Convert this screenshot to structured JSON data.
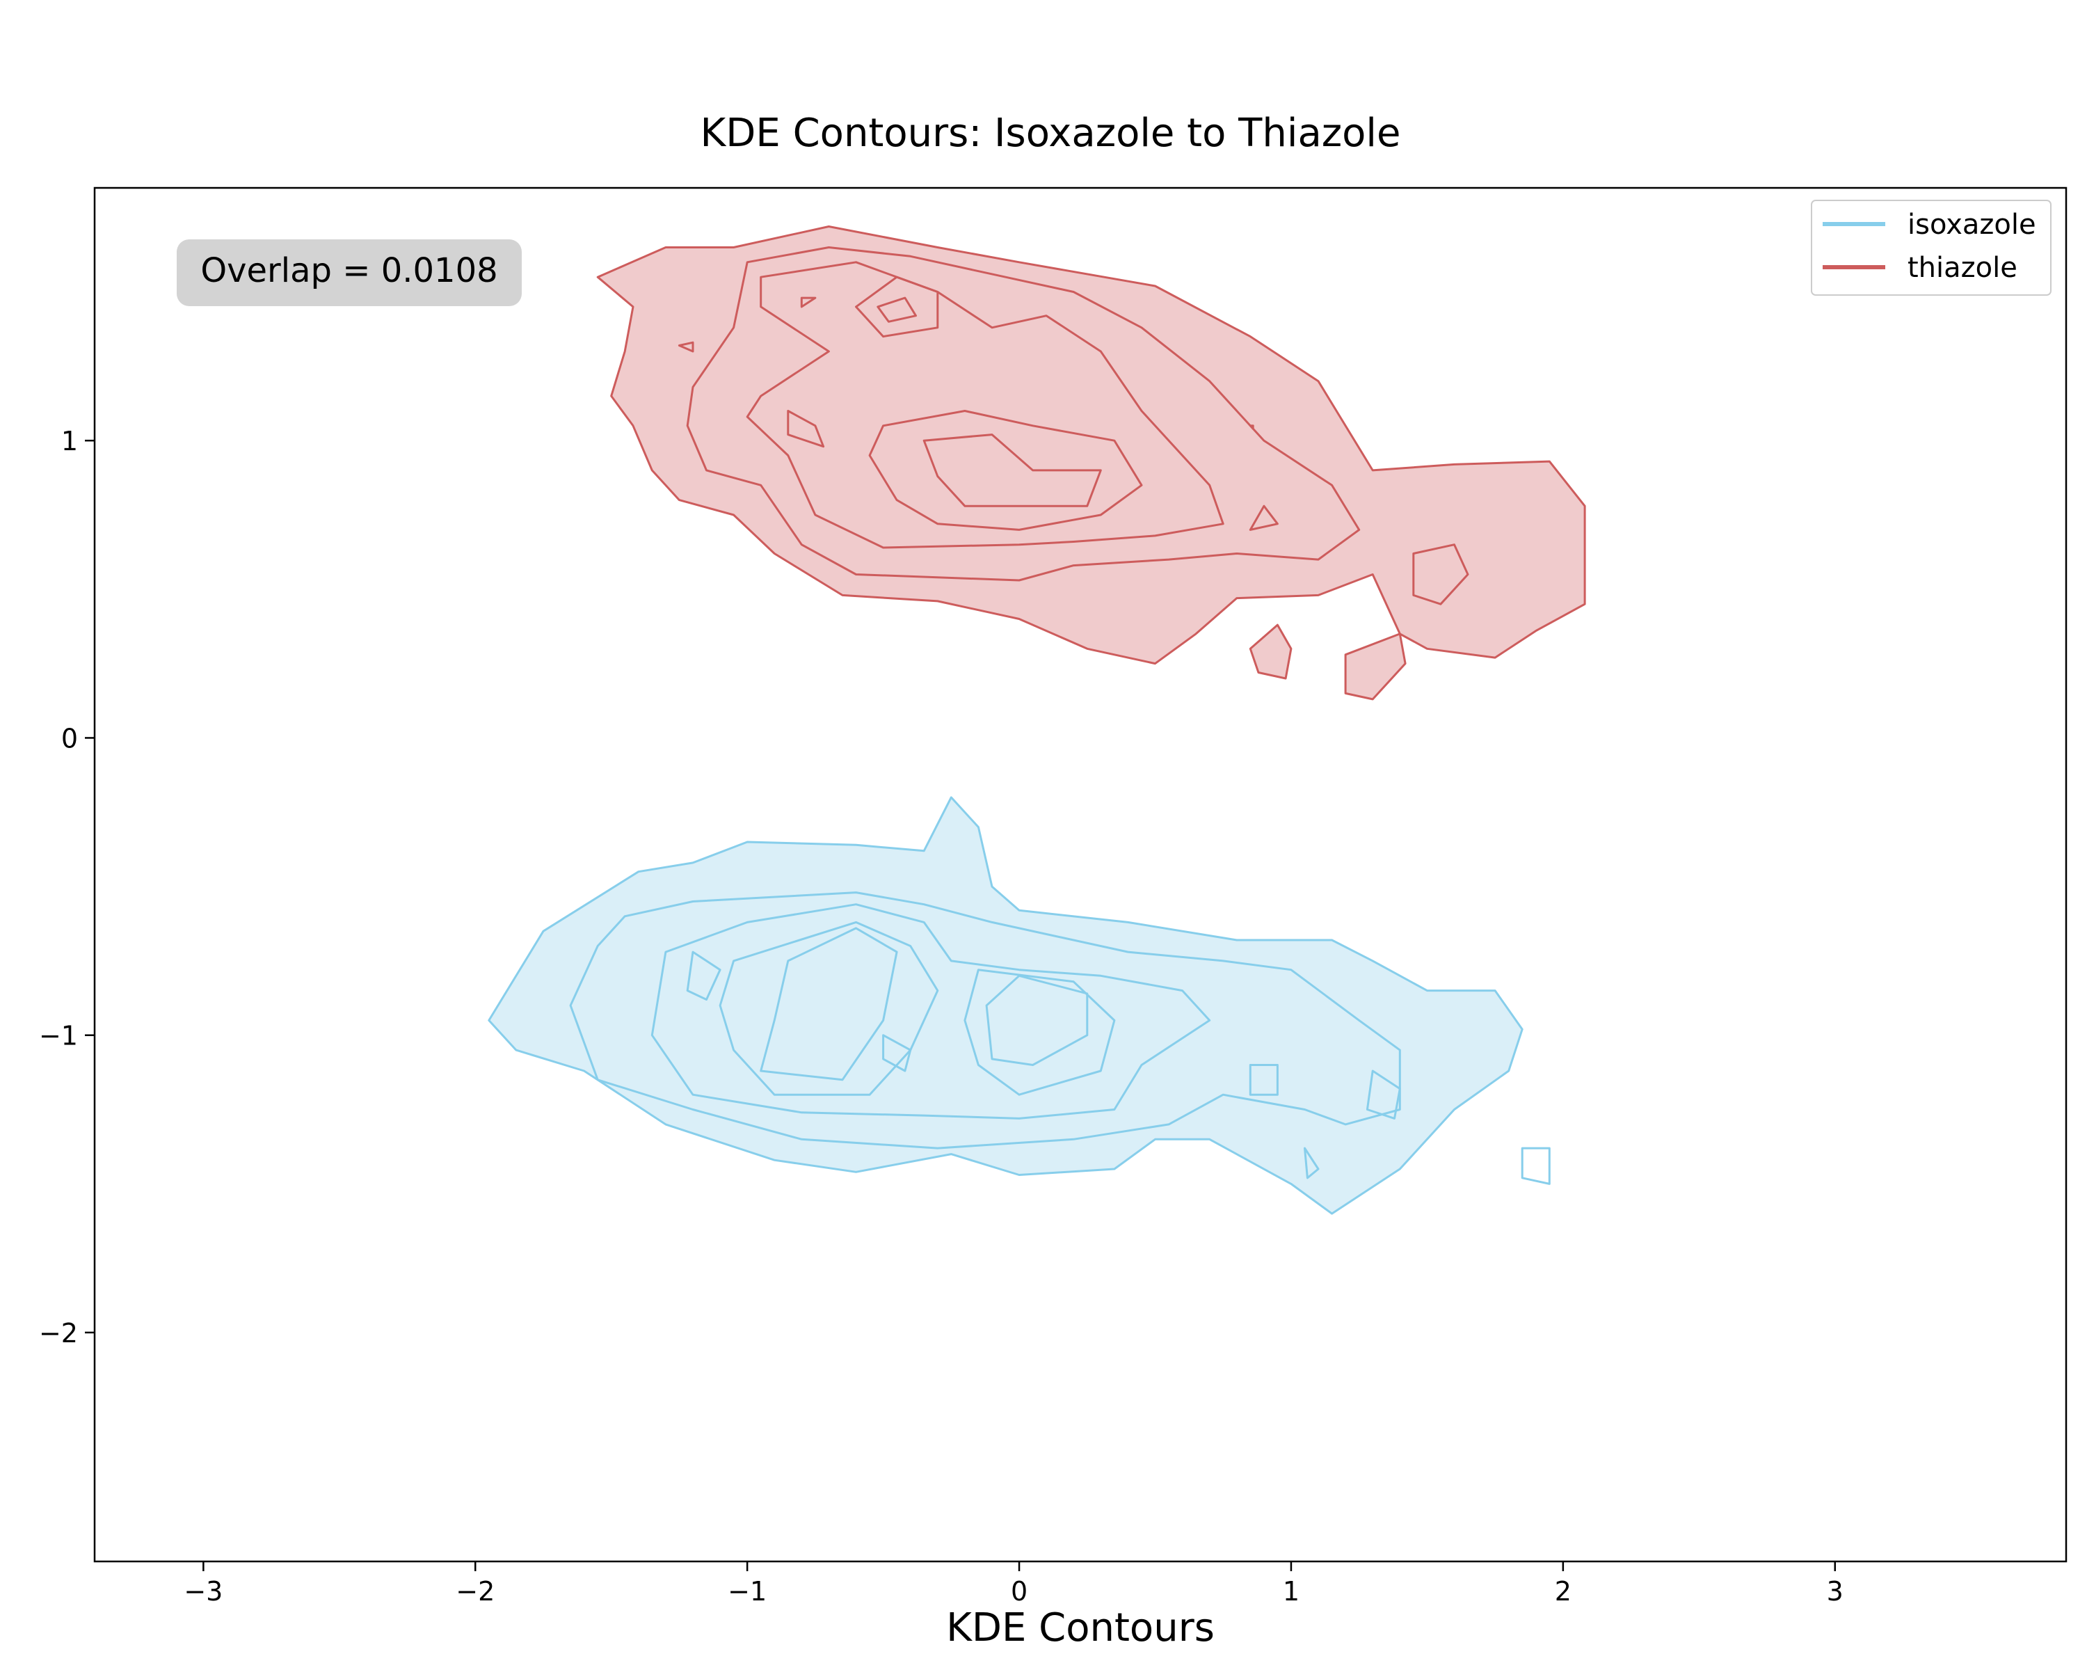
{
  "chart_data": {
    "type": "contour",
    "title": "KDE Contours: Isoxazole to Thiazole",
    "xlabel": "KDE Contours",
    "ylabel": "",
    "xlim": [
      -3.4,
      3.85
    ],
    "ylim": [
      -2.77,
      1.85
    ],
    "x_ticks": [
      -3,
      -2,
      -1,
      0,
      1,
      2,
      3
    ],
    "x_tick_labels": [
      "−3",
      "−2",
      "−1",
      "0",
      "1",
      "2",
      "3"
    ],
    "y_ticks": [
      -2,
      -1,
      0,
      1
    ],
    "y_tick_labels": [
      "−2",
      "−1",
      "0",
      "1"
    ],
    "grid": false,
    "legend_position": "top-right",
    "annotation": "Overlap = 0.0108",
    "series": [
      {
        "name": "isoxazole",
        "color": "#87CEEB",
        "fill": "#DAEFF8",
        "outer": [
          [
            -1.95,
            -0.95
          ],
          [
            -1.75,
            -0.65
          ],
          [
            -1.4,
            -0.45
          ],
          [
            -1.2,
            -0.42
          ],
          [
            -1.0,
            -0.35
          ],
          [
            -0.6,
            -0.36
          ],
          [
            -0.35,
            -0.38
          ],
          [
            -0.25,
            -0.2
          ],
          [
            -0.15,
            -0.3
          ],
          [
            -0.1,
            -0.5
          ],
          [
            0.0,
            -0.58
          ],
          [
            0.4,
            -0.62
          ],
          [
            0.8,
            -0.68
          ],
          [
            1.15,
            -0.68
          ],
          [
            1.3,
            -0.75
          ],
          [
            1.5,
            -0.85
          ],
          [
            1.75,
            -0.85
          ],
          [
            1.85,
            -0.98
          ],
          [
            1.8,
            -1.12
          ],
          [
            1.6,
            -1.25
          ],
          [
            1.4,
            -1.45
          ],
          [
            1.15,
            -1.6
          ],
          [
            1.0,
            -1.5
          ],
          [
            0.7,
            -1.35
          ],
          [
            0.5,
            -1.35
          ],
          [
            0.35,
            -1.45
          ],
          [
            0.0,
            -1.47
          ],
          [
            -0.25,
            -1.4
          ],
          [
            -0.6,
            -1.46
          ],
          [
            -0.9,
            -1.42
          ],
          [
            -1.3,
            -1.3
          ],
          [
            -1.6,
            -1.12
          ],
          [
            -1.85,
            -1.05
          ]
        ],
        "inner_contours": [
          [
            [
              -1.45,
              -0.6
            ],
            [
              -1.2,
              -0.55
            ],
            [
              -0.6,
              -0.52
            ],
            [
              -0.35,
              -0.56
            ],
            [
              -0.1,
              -0.62
            ],
            [
              0.4,
              -0.72
            ],
            [
              0.75,
              -0.75
            ],
            [
              1.0,
              -0.78
            ],
            [
              1.25,
              -0.95
            ],
            [
              1.4,
              -1.05
            ],
            [
              1.4,
              -1.25
            ],
            [
              1.2,
              -1.3
            ],
            [
              1.05,
              -1.25
            ],
            [
              0.75,
              -1.2
            ],
            [
              0.55,
              -1.3
            ],
            [
              0.2,
              -1.35
            ],
            [
              -0.3,
              -1.38
            ],
            [
              -0.8,
              -1.35
            ],
            [
              -1.2,
              -1.25
            ],
            [
              -1.55,
              -1.15
            ],
            [
              -1.65,
              -0.9
            ],
            [
              -1.55,
              -0.7
            ]
          ],
          [
            [
              -1.3,
              -0.72
            ],
            [
              -1.0,
              -0.62
            ],
            [
              -0.6,
              -0.56
            ],
            [
              -0.35,
              -0.62
            ],
            [
              -0.25,
              -0.75
            ],
            [
              0.0,
              -0.78
            ],
            [
              0.3,
              -0.8
            ],
            [
              0.6,
              -0.85
            ],
            [
              0.7,
              -0.95
            ],
            [
              0.45,
              -1.1
            ],
            [
              0.35,
              -1.25
            ],
            [
              0.0,
              -1.28
            ],
            [
              -0.35,
              -1.27
            ],
            [
              -0.8,
              -1.26
            ],
            [
              -1.2,
              -1.2
            ],
            [
              -1.35,
              -1.0
            ]
          ],
          [
            [
              -1.05,
              -0.75
            ],
            [
              -0.6,
              -0.62
            ],
            [
              -0.4,
              -0.7
            ],
            [
              -0.3,
              -0.85
            ],
            [
              -0.4,
              -1.05
            ],
            [
              -0.55,
              -1.2
            ],
            [
              -0.9,
              -1.2
            ],
            [
              -1.05,
              -1.05
            ],
            [
              -1.1,
              -0.9
            ]
          ],
          [
            [
              -0.15,
              -0.78
            ],
            [
              0.2,
              -0.82
            ],
            [
              0.35,
              -0.95
            ],
            [
              0.3,
              -1.12
            ],
            [
              0.0,
              -1.2
            ],
            [
              -0.15,
              -1.1
            ],
            [
              -0.2,
              -0.95
            ]
          ],
          [
            [
              -0.85,
              -0.75
            ],
            [
              -0.6,
              -0.64
            ],
            [
              -0.45,
              -0.72
            ],
            [
              -0.5,
              -0.95
            ],
            [
              -0.65,
              -1.15
            ],
            [
              -0.95,
              -1.12
            ],
            [
              -0.9,
              -0.95
            ]
          ],
          [
            [
              0.0,
              -0.8
            ],
            [
              0.25,
              -0.86
            ],
            [
              0.25,
              -1.0
            ],
            [
              0.05,
              -1.1
            ],
            [
              -0.1,
              -1.08
            ],
            [
              -0.12,
              -0.9
            ]
          ],
          [
            [
              -1.2,
              -0.72
            ],
            [
              -1.1,
              -0.78
            ],
            [
              -1.15,
              -0.88
            ],
            [
              -1.22,
              -0.85
            ]
          ],
          [
            [
              0.85,
              -1.1
            ],
            [
              0.95,
              -1.1
            ],
            [
              0.95,
              -1.2
            ],
            [
              0.85,
              -1.2
            ]
          ],
          [
            [
              1.3,
              -1.12
            ],
            [
              1.4,
              -1.18
            ],
            [
              1.38,
              -1.28
            ],
            [
              1.28,
              -1.25
            ]
          ],
          [
            [
              -0.5,
              -1.0
            ],
            [
              -0.4,
              -1.05
            ],
            [
              -0.42,
              -1.12
            ],
            [
              -0.5,
              -1.08
            ]
          ],
          [
            [
              1.05,
              -1.38
            ],
            [
              1.1,
              -1.45
            ],
            [
              1.06,
              -1.48
            ]
          ],
          [
            [
              1.85,
              -1.38
            ],
            [
              1.95,
              -1.38
            ],
            [
              1.95,
              -1.5
            ],
            [
              1.85,
              -1.48
            ]
          ]
        ]
      },
      {
        "name": "thiazole",
        "color": "#CD5C5C",
        "fill": "#F0CBCC",
        "outer": [
          [
            -1.55,
            1.55
          ],
          [
            -1.3,
            1.65
          ],
          [
            -1.05,
            1.65
          ],
          [
            -0.7,
            1.72
          ],
          [
            -0.3,
            1.65
          ],
          [
            0.0,
            1.6
          ],
          [
            0.5,
            1.52
          ],
          [
            0.85,
            1.35
          ],
          [
            1.1,
            1.2
          ],
          [
            1.3,
            0.9
          ],
          [
            1.6,
            0.92
          ],
          [
            1.95,
            0.93
          ],
          [
            2.08,
            0.78
          ],
          [
            2.08,
            0.45
          ],
          [
            1.9,
            0.36
          ],
          [
            1.75,
            0.27
          ],
          [
            1.5,
            0.3
          ],
          [
            1.4,
            0.35
          ],
          [
            1.3,
            0.55
          ],
          [
            1.1,
            0.48
          ],
          [
            0.8,
            0.47
          ],
          [
            0.65,
            0.35
          ],
          [
            0.5,
            0.25
          ],
          [
            0.25,
            0.3
          ],
          [
            0.0,
            0.4
          ],
          [
            -0.3,
            0.46
          ],
          [
            -0.65,
            0.48
          ],
          [
            -0.9,
            0.62
          ],
          [
            -1.05,
            0.75
          ],
          [
            -1.25,
            0.8
          ],
          [
            -1.35,
            0.9
          ],
          [
            -1.42,
            1.05
          ],
          [
            -1.5,
            1.15
          ],
          [
            -1.45,
            1.3
          ],
          [
            -1.42,
            1.45
          ]
        ],
        "inner_contours": [
          [
            [
              -1.2,
              1.18
            ],
            [
              -1.05,
              1.38
            ],
            [
              -1.0,
              1.6
            ],
            [
              -0.7,
              1.65
            ],
            [
              -0.4,
              1.62
            ],
            [
              -0.05,
              1.55
            ],
            [
              0.2,
              1.5
            ],
            [
              0.45,
              1.38
            ],
            [
              0.7,
              1.2
            ],
            [
              0.9,
              1.0
            ],
            [
              1.15,
              0.85
            ],
            [
              1.25,
              0.7
            ],
            [
              1.1,
              0.6
            ],
            [
              0.8,
              0.62
            ],
            [
              0.55,
              0.6
            ],
            [
              0.2,
              0.58
            ],
            [
              0.0,
              0.53
            ],
            [
              -0.6,
              0.55
            ],
            [
              -0.8,
              0.65
            ],
            [
              -0.95,
              0.85
            ],
            [
              -1.15,
              0.9
            ],
            [
              -1.22,
              1.05
            ]
          ],
          [
            [
              -0.95,
              1.15
            ],
            [
              -0.7,
              1.3
            ],
            [
              -0.95,
              1.45
            ],
            [
              -0.95,
              1.55
            ],
            [
              -0.6,
              1.6
            ],
            [
              -0.3,
              1.5
            ],
            [
              -0.1,
              1.38
            ],
            [
              0.1,
              1.42
            ],
            [
              0.3,
              1.3
            ],
            [
              0.45,
              1.1
            ],
            [
              0.7,
              0.85
            ],
            [
              0.75,
              0.72
            ],
            [
              0.5,
              0.68
            ],
            [
              0.2,
              0.66
            ],
            [
              0.0,
              0.65
            ],
            [
              -0.5,
              0.64
            ],
            [
              -0.75,
              0.75
            ],
            [
              -0.85,
              0.95
            ],
            [
              -1.0,
              1.08
            ]
          ],
          [
            [
              -0.5,
              1.05
            ],
            [
              -0.2,
              1.1
            ],
            [
              0.05,
              1.05
            ],
            [
              0.35,
              1.0
            ],
            [
              0.45,
              0.85
            ],
            [
              0.3,
              0.75
            ],
            [
              0.0,
              0.7
            ],
            [
              -0.3,
              0.72
            ],
            [
              -0.45,
              0.8
            ],
            [
              -0.55,
              0.95
            ]
          ],
          [
            [
              -0.35,
              1.0
            ],
            [
              -0.1,
              1.02
            ],
            [
              0.05,
              0.9
            ],
            [
              0.3,
              0.9
            ],
            [
              0.25,
              0.78
            ],
            [
              0.0,
              0.78
            ],
            [
              -0.2,
              0.78
            ],
            [
              -0.3,
              0.88
            ]
          ],
          [
            [
              -0.6,
              1.45
            ],
            [
              -0.45,
              1.55
            ],
            [
              -0.3,
              1.5
            ],
            [
              -0.3,
              1.38
            ],
            [
              -0.5,
              1.35
            ]
          ],
          [
            [
              -0.52,
              1.45
            ],
            [
              -0.42,
              1.48
            ],
            [
              -0.38,
              1.42
            ],
            [
              -0.48,
              1.4
            ]
          ],
          [
            [
              -0.85,
              1.1
            ],
            [
              -0.75,
              1.05
            ],
            [
              -0.72,
              0.98
            ],
            [
              -0.85,
              1.02
            ]
          ],
          [
            [
              -0.8,
              1.48
            ],
            [
              -0.75,
              1.48
            ],
            [
              -0.8,
              1.45
            ]
          ],
          [
            [
              -1.25,
              1.32
            ],
            [
              -1.2,
              1.33
            ],
            [
              -1.2,
              1.3
            ]
          ],
          [
            [
              1.45,
              0.62
            ],
            [
              1.6,
              0.65
            ],
            [
              1.65,
              0.55
            ],
            [
              1.55,
              0.45
            ],
            [
              1.45,
              0.48
            ]
          ],
          [
            [
              0.85,
              0.7
            ],
            [
              0.95,
              0.72
            ],
            [
              0.9,
              0.78
            ]
          ],
          [
            [
              0.85,
              1.05
            ],
            [
              0.86,
              1.05
            ],
            [
              0.86,
              1.04
            ]
          ]
        ],
        "islands": [
          [
            [
              0.85,
              0.3
            ],
            [
              0.95,
              0.38
            ],
            [
              1.0,
              0.3
            ],
            [
              0.98,
              0.2
            ],
            [
              0.88,
              0.22
            ]
          ],
          [
            [
              1.2,
              0.28
            ],
            [
              1.4,
              0.35
            ],
            [
              1.42,
              0.25
            ],
            [
              1.3,
              0.13
            ],
            [
              1.2,
              0.15
            ]
          ]
        ]
      }
    ]
  }
}
